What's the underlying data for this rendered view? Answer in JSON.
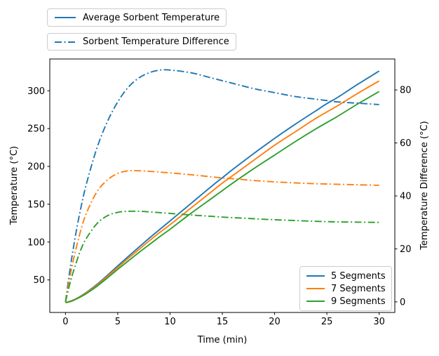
{
  "figure": {
    "background": "#ffffff"
  },
  "axes": {
    "xlabel": "Time (min)",
    "ylabel_left": "Temperature (°C)",
    "ylabel_right": "Temperature Difference (°C)",
    "x_ticks": [
      0,
      5,
      10,
      15,
      20,
      25,
      30
    ],
    "left_ticks": [
      50,
      100,
      150,
      200,
      250,
      300
    ],
    "right_ticks": [
      0,
      20,
      40,
      60,
      80
    ],
    "spine_color": "#000000"
  },
  "legends": {
    "top": [
      {
        "label": "Average Sorbent Temperature",
        "style": "solid",
        "color": "#1f77b4"
      },
      {
        "label": "Sorbent Temperature Difference",
        "style": "dashdot",
        "color": "#1f77b4"
      }
    ],
    "inner": [
      {
        "label": "5 Segments",
        "color": "#1f77b4"
      },
      {
        "label": "7 Segments",
        "color": "#ff7f0e"
      },
      {
        "label": "9 Segments",
        "color": "#2ca02c"
      }
    ]
  },
  "chart_data": {
    "type": "line",
    "title": "",
    "xlabel": "Time (min)",
    "ylabel_left": "Temperature (°C)",
    "ylabel_right": "Temperature Difference (°C)",
    "xlim": [
      -1.5,
      31.5
    ],
    "ylim_left": [
      7,
      342
    ],
    "ylim_right": [
      -4,
      91.7
    ],
    "grid": false,
    "legend_positions": [
      "upper-left-outside",
      "lower-right-inside"
    ],
    "x": [
      0,
      0.5,
      1,
      1.5,
      2,
      3,
      4,
      5,
      6,
      7,
      8,
      9,
      10,
      12,
      14,
      15,
      16,
      18,
      20,
      22,
      24,
      25,
      26,
      28,
      30
    ],
    "series": [
      {
        "name": "5 Segments - Average Sorbent Temperature",
        "axis": "left",
        "style": "solid",
        "color": "#1f77b4",
        "values": [
          20,
          22,
          25,
          29,
          33.5,
          44,
          56,
          68.5,
          81,
          93,
          105,
          116.5,
          128,
          151,
          174,
          185,
          196,
          217,
          237,
          256,
          274,
          283,
          291,
          309,
          326
        ]
      },
      {
        "name": "7 Segments - Average Sorbent Temperature",
        "axis": "left",
        "style": "solid",
        "color": "#ff7f0e",
        "values": [
          20,
          22,
          25,
          28.5,
          33,
          43,
          54.5,
          66.5,
          78.5,
          90,
          101.5,
          112.5,
          123,
          145,
          167,
          178,
          188,
          208,
          228,
          246,
          264,
          272,
          280,
          297,
          313
        ]
      },
      {
        "name": "9 Segments - Average Sorbent Temperature",
        "axis": "left",
        "style": "solid",
        "color": "#2ca02c",
        "values": [
          20,
          21.5,
          24.5,
          28,
          32,
          41.5,
          52.5,
          64,
          75,
          86,
          96.5,
          107,
          117,
          138,
          158,
          168,
          178,
          197,
          215,
          233,
          250,
          258,
          266,
          283,
          299
        ]
      },
      {
        "name": "5 Segments - Sorbent Temperature Difference",
        "axis": "right",
        "style": "dashdot",
        "color": "#1f77b4",
        "values": [
          0,
          14,
          26,
          36,
          44.5,
          58,
          68,
          75.5,
          81,
          84.5,
          86.5,
          87.5,
          87.5,
          86.5,
          84.5,
          83.5,
          82.5,
          80.5,
          79,
          77.5,
          76.5,
          76,
          75.5,
          75,
          74.5
        ]
      },
      {
        "name": "7 Segments - Sorbent Temperature Difference",
        "axis": "right",
        "style": "dashdot",
        "color": "#ff7f0e",
        "values": [
          0,
          11,
          20,
          27.5,
          33.5,
          41.5,
          46,
          48.5,
          49.5,
          49.5,
          49.3,
          49,
          48.7,
          48,
          47.2,
          46.8,
          46.5,
          45.8,
          45.3,
          44.9,
          44.6,
          44.5,
          44.4,
          44.2,
          44
        ]
      },
      {
        "name": "9 Segments - Sorbent Temperature Difference",
        "axis": "right",
        "style": "dashdot",
        "color": "#2ca02c",
        "values": [
          0,
          8,
          14.5,
          20,
          24,
          29.5,
          32.5,
          33.8,
          34.2,
          34.2,
          34,
          33.7,
          33.4,
          32.8,
          32.3,
          32,
          31.8,
          31.4,
          31,
          30.7,
          30.4,
          30.3,
          30.2,
          30.1,
          30
        ]
      }
    ]
  }
}
